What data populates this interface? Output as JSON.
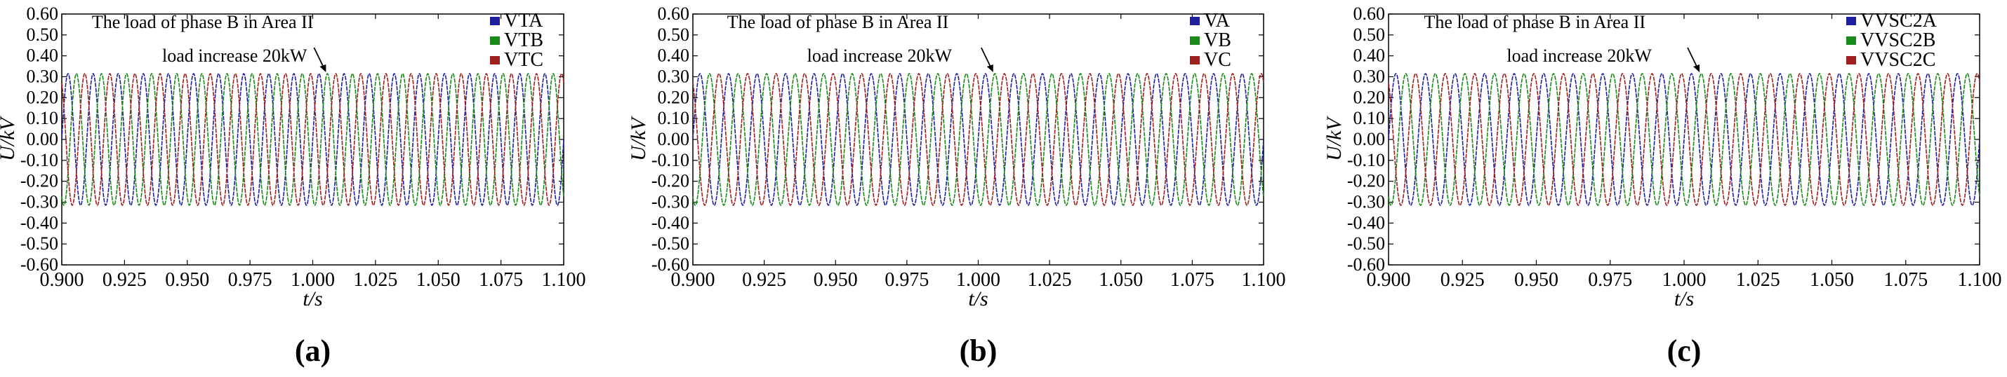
{
  "chart_data": [
    {
      "type": "line",
      "panel_label": "(a)",
      "title": "",
      "xlabel": "t/s",
      "ylabel": "U/kV",
      "xlim": [
        0.9,
        1.1
      ],
      "ylim": [
        -0.6,
        0.6
      ],
      "xticks": [
        "0.900",
        "0.925",
        "0.950",
        "0.975",
        "1.000",
        "1.025",
        "1.050",
        "1.075",
        "1.100"
      ],
      "yticks": [
        "0.60",
        "0.50",
        "0.40",
        "0.30",
        "0.20",
        "0.10",
        "0.00",
        "-0.10",
        "-0.20",
        "-0.30",
        "-0.40",
        "-0.50",
        "-0.60"
      ],
      "grid": false,
      "legend_position": "top-right",
      "frequency_hz": 100,
      "amplitude_kv": 0.315,
      "series": [
        {
          "name": "VTA",
          "color": "#1f1fa0",
          "phase_deg": 0
        },
        {
          "name": "VTB",
          "color": "#1a8a1a",
          "phase_deg": -120
        },
        {
          "name": "VTC",
          "color": "#a01f1f",
          "phase_deg": 120
        }
      ],
      "annotations": [
        "The load of phase B in Area II",
        "load increase 20kW"
      ],
      "event_time_s": 1.005
    },
    {
      "type": "line",
      "panel_label": "(b)",
      "title": "",
      "xlabel": "t/s",
      "ylabel": "U/kV",
      "xlim": [
        0.9,
        1.1
      ],
      "ylim": [
        -0.6,
        0.6
      ],
      "xticks": [
        "0.900",
        "0.925",
        "0.950",
        "0.975",
        "1.000",
        "1.025",
        "1.050",
        "1.075",
        "1.100"
      ],
      "yticks": [
        "0.60",
        "0.50",
        "0.40",
        "0.30",
        "0.20",
        "0.10",
        "0.00",
        "-0.10",
        "-0.20",
        "-0.30",
        "-0.40",
        "-0.50",
        "-0.60"
      ],
      "grid": false,
      "legend_position": "top-right",
      "frequency_hz": 100,
      "amplitude_kv": 0.315,
      "series": [
        {
          "name": "VA",
          "color": "#1f1fa0",
          "phase_deg": 0
        },
        {
          "name": "VB",
          "color": "#1a8a1a",
          "phase_deg": -120
        },
        {
          "name": "VC",
          "color": "#a01f1f",
          "phase_deg": 120
        }
      ],
      "annotations": [
        "The load of phase B in Area II",
        "load increase 20kW"
      ],
      "event_time_s": 1.005
    },
    {
      "type": "line",
      "panel_label": "(c)",
      "title": "",
      "xlabel": "t/s",
      "ylabel": "U/kV",
      "xlim": [
        0.9,
        1.1
      ],
      "ylim": [
        -0.6,
        0.6
      ],
      "xticks": [
        "0.900",
        "0.925",
        "0.950",
        "0.975",
        "1.000",
        "1.025",
        "1.050",
        "1.075",
        "1.100"
      ],
      "yticks": [
        "0.60",
        "0.50",
        "0.40",
        "0.30",
        "0.20",
        "0.10",
        "0.00",
        "-0.10",
        "-0.20",
        "-0.30",
        "-0.40",
        "-0.50",
        "-0.60"
      ],
      "grid": false,
      "legend_position": "top-right",
      "frequency_hz": 100,
      "amplitude_kv": 0.315,
      "series": [
        {
          "name": "VVSC2A",
          "color": "#1f1fa0",
          "phase_deg": 0
        },
        {
          "name": "VVSC2B",
          "color": "#1a8a1a",
          "phase_deg": -120
        },
        {
          "name": "VVSC2C",
          "color": "#a01f1f",
          "phase_deg": 120
        }
      ],
      "annotations": [
        "The load of phase B in Area II",
        "load increase 20kW"
      ],
      "event_time_s": 1.005
    }
  ]
}
